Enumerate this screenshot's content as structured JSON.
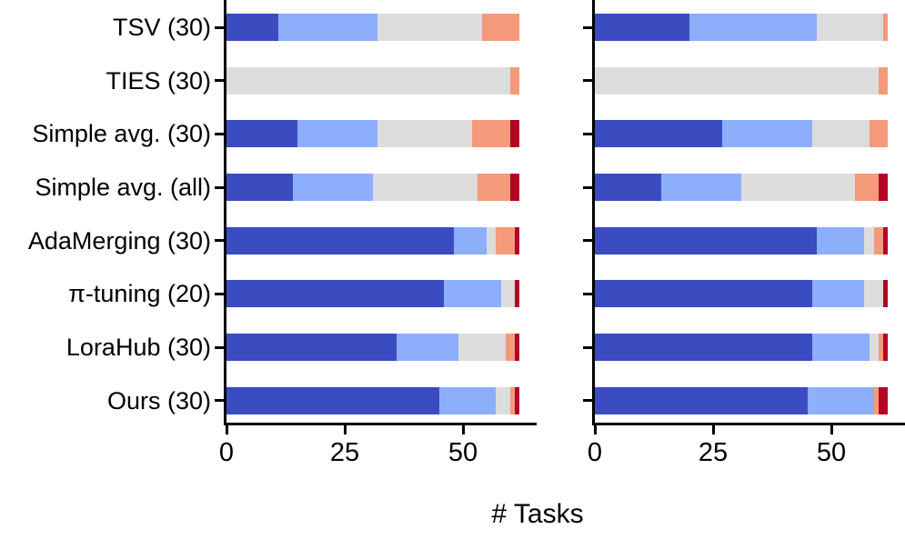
{
  "xlabel": "# Tasks",
  "palette": {
    "dark_blue": "#3B4CC0",
    "light_blue": "#8CAEFB",
    "gray": "#DCDCDC",
    "salmon": "#F49A7B",
    "dark_red": "#B40426"
  },
  "chart_data": [
    {
      "type": "bar",
      "orientation": "horizontal",
      "stacked": true,
      "panel": "left",
      "categories": [
        "TSV (30)",
        "TIES (30)",
        "Simple avg. (30)",
        "Simple avg. (all)",
        "AdaMerging (30)",
        "π-tuning (20)",
        "LoraHub (30)",
        "Ours (30)"
      ],
      "series": [
        {
          "name": "series-1-dark-blue",
          "color": "#3B4CC0",
          "values": [
            11,
            0,
            15,
            14,
            48,
            46,
            36,
            45
          ]
        },
        {
          "name": "series-2-light-blue",
          "color": "#8CAEFB",
          "values": [
            21,
            0,
            17,
            17,
            7,
            12,
            13,
            12
          ]
        },
        {
          "name": "series-3-gray",
          "color": "#DCDCDC",
          "values": [
            22,
            60,
            20,
            22,
            2,
            3,
            10,
            3
          ]
        },
        {
          "name": "series-4-salmon",
          "color": "#F49A7B",
          "values": [
            8,
            2,
            8,
            7,
            4,
            0,
            2,
            1
          ]
        },
        {
          "name": "series-5-dark-red",
          "color": "#B40426",
          "values": [
            0,
            0,
            2,
            2,
            1,
            1,
            1,
            1
          ]
        }
      ],
      "row_totals": [
        62,
        62,
        62,
        62,
        62,
        62,
        62,
        62
      ],
      "xticks": [
        0,
        25,
        50
      ],
      "xlim": [
        0,
        65.5
      ],
      "grid": false,
      "legend": null
    },
    {
      "type": "bar",
      "orientation": "horizontal",
      "stacked": true,
      "panel": "right",
      "categories": [
        "TSV (30)",
        "TIES (30)",
        "Simple avg. (30)",
        "Simple avg. (all)",
        "AdaMerging (30)",
        "π-tuning (20)",
        "LoraHub (30)",
        "Ours (30)"
      ],
      "series": [
        {
          "name": "series-1-dark-blue",
          "color": "#3B4CC0",
          "values": [
            20,
            0,
            27,
            14,
            47,
            46,
            46,
            45
          ]
        },
        {
          "name": "series-2-light-blue",
          "color": "#8CAEFB",
          "values": [
            27,
            0,
            19,
            17,
            10,
            11,
            12,
            14
          ]
        },
        {
          "name": "series-3-gray",
          "color": "#DCDCDC",
          "values": [
            14,
            60,
            12,
            24,
            2,
            4,
            2,
            0
          ]
        },
        {
          "name": "series-4-salmon",
          "color": "#F49A7B",
          "values": [
            1,
            2,
            4,
            5,
            2,
            0,
            1,
            1
          ]
        },
        {
          "name": "series-5-dark-red",
          "color": "#B40426",
          "values": [
            0,
            0,
            0,
            2,
            1,
            1,
            1,
            2
          ]
        }
      ],
      "row_totals": [
        62,
        62,
        62,
        62,
        62,
        62,
        62,
        62
      ],
      "xticks": [
        0,
        25,
        50
      ],
      "xlim": [
        0,
        65.5
      ],
      "grid": false,
      "legend": null
    }
  ]
}
